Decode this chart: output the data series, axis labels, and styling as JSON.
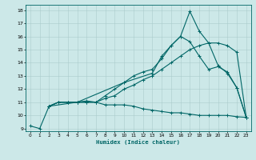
{
  "xlabel": "Humidex (Indice chaleur)",
  "bg_color": "#cce8e8",
  "grid_color": "#aacccc",
  "line_color": "#006666",
  "xlim": [
    -0.5,
    23.5
  ],
  "ylim": [
    8.8,
    18.4
  ],
  "xticks": [
    0,
    1,
    2,
    3,
    4,
    5,
    6,
    7,
    8,
    9,
    10,
    11,
    12,
    13,
    14,
    15,
    16,
    17,
    18,
    19,
    20,
    21,
    22,
    23
  ],
  "yticks": [
    9,
    10,
    11,
    12,
    13,
    14,
    15,
    16,
    17,
    18
  ],
  "curve_bottom_x": [
    0,
    1,
    2,
    3,
    4,
    5,
    6,
    7,
    8,
    9,
    10,
    11,
    12,
    13,
    14,
    15,
    16,
    17,
    18,
    19,
    20,
    21,
    22,
    23
  ],
  "curve_bottom_y": [
    9.2,
    9.0,
    10.7,
    11.0,
    11.0,
    11.0,
    11.0,
    11.0,
    10.8,
    10.8,
    10.8,
    10.7,
    10.5,
    10.4,
    10.3,
    10.2,
    10.2,
    10.1,
    10.0,
    10.0,
    10.0,
    10.0,
    9.9,
    9.85
  ],
  "curve_line1_x": [
    2,
    3,
    4,
    5,
    6,
    7,
    8,
    9,
    10,
    11,
    12,
    13,
    14,
    15,
    16,
    17,
    18,
    19,
    20,
    21,
    22,
    23
  ],
  "curve_line1_y": [
    10.7,
    11.0,
    11.0,
    11.0,
    11.0,
    11.0,
    11.3,
    11.5,
    12.0,
    12.3,
    12.7,
    13.0,
    13.5,
    14.0,
    14.5,
    15.0,
    15.3,
    15.5,
    15.5,
    15.3,
    14.8,
    9.85
  ],
  "curve_mid_x": [
    2,
    3,
    4,
    5,
    6,
    7,
    8,
    9,
    10,
    11,
    12,
    13,
    14,
    15,
    16,
    17,
    18,
    19,
    20,
    21,
    22,
    23
  ],
  "curve_mid_y": [
    10.7,
    11.0,
    11.0,
    11.0,
    11.1,
    11.0,
    11.5,
    12.0,
    12.5,
    13.0,
    13.3,
    13.5,
    14.3,
    15.3,
    16.0,
    15.6,
    14.5,
    13.5,
    13.7,
    13.3,
    12.1,
    9.85
  ],
  "curve_top_x": [
    2,
    5,
    10,
    13,
    14,
    15,
    16,
    17,
    18,
    19,
    20,
    21,
    22,
    23
  ],
  "curve_top_y": [
    10.7,
    11.0,
    12.5,
    13.2,
    14.5,
    15.3,
    16.0,
    17.9,
    16.4,
    15.5,
    13.8,
    13.2,
    12.1,
    9.85
  ]
}
